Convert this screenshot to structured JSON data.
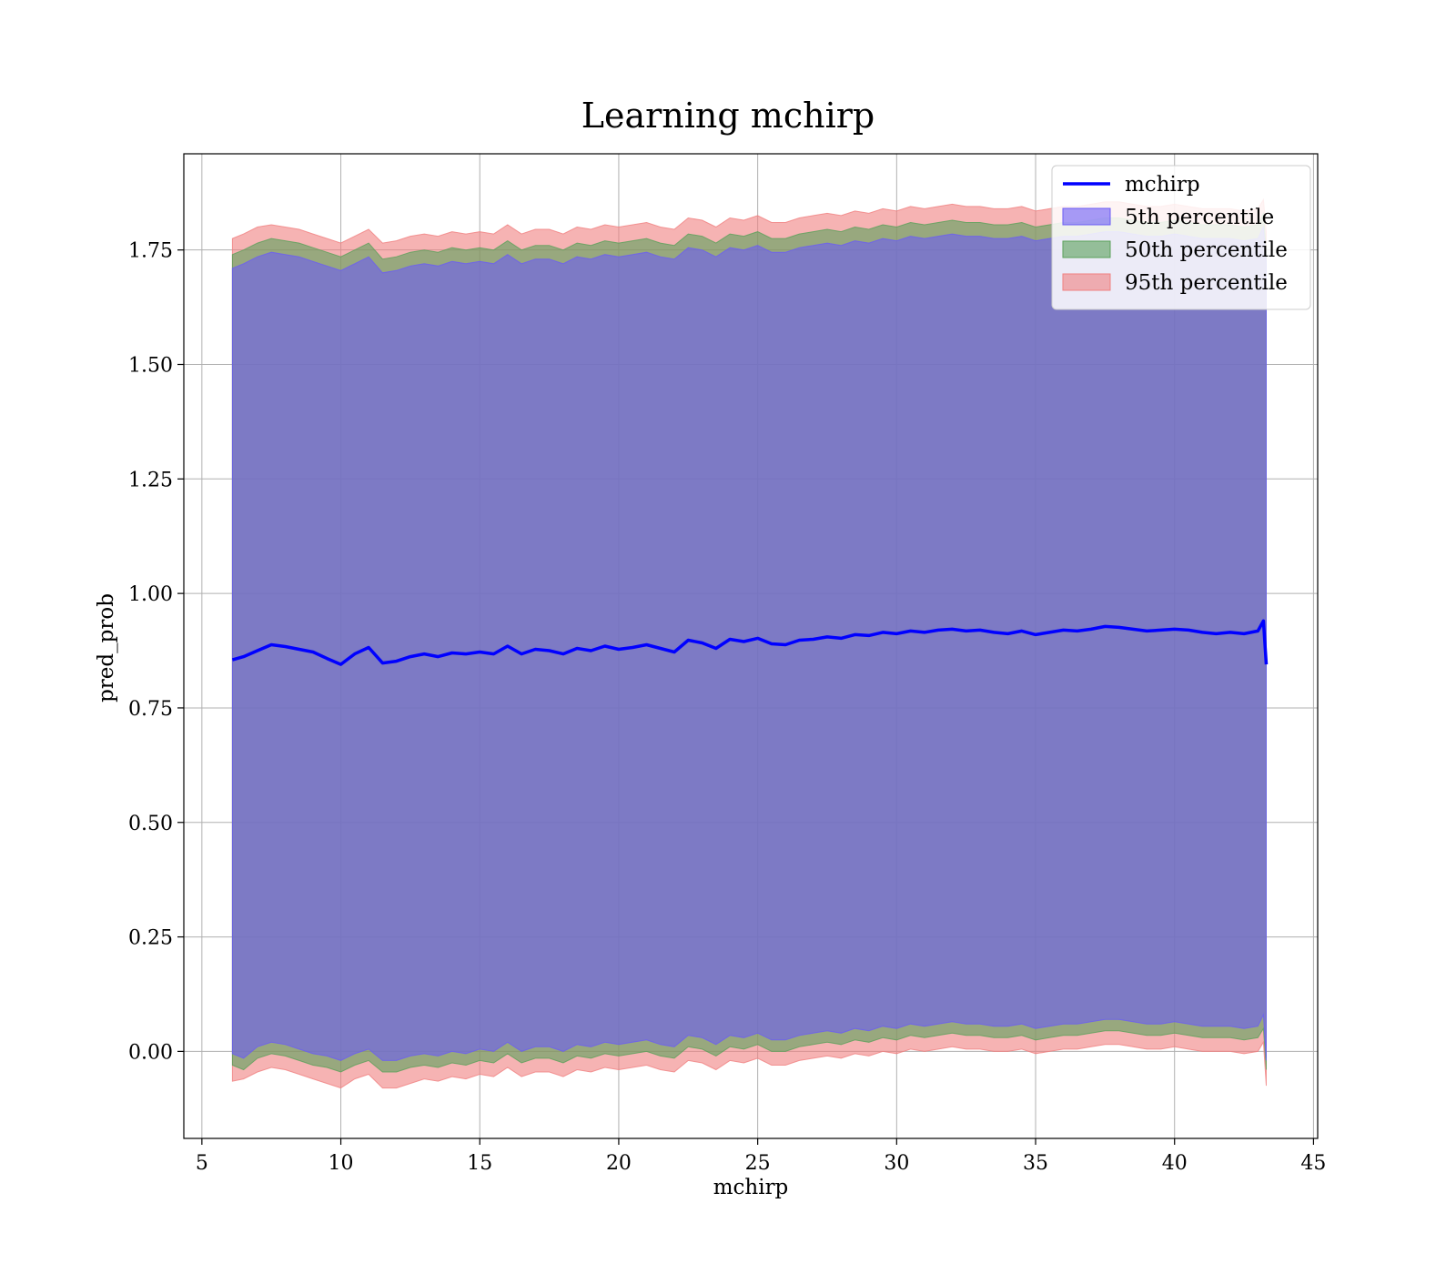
{
  "chart_data": {
    "type": "area",
    "title": "Learning mchirp",
    "xlabel": "mchirp",
    "ylabel": "pred_prob",
    "xlim": [
      4.35,
      45.15
    ],
    "ylim": [
      -0.19,
      1.96
    ],
    "xticks": [
      5,
      10,
      15,
      20,
      25,
      30,
      35,
      40,
      45
    ],
    "xtick_labels": [
      "5",
      "10",
      "15",
      "20",
      "25",
      "30",
      "35",
      "40",
      "45"
    ],
    "yticks": [
      0.0,
      0.25,
      0.5,
      0.75,
      1.0,
      1.25,
      1.5,
      1.75
    ],
    "ytick_labels": [
      "0.00",
      "0.25",
      "0.50",
      "0.75",
      "1.00",
      "1.25",
      "1.50",
      "1.75"
    ],
    "grid": true,
    "legend_position": "top-right",
    "legend": [
      {
        "label": "mchirp",
        "kind": "line",
        "color": "#0000ff"
      },
      {
        "label": "5th percentile",
        "kind": "patch",
        "color": "#6a5cf5"
      },
      {
        "label": "50th percentile",
        "kind": "patch",
        "color": "#5aa05a"
      },
      {
        "label": "95th percentile",
        "kind": "patch",
        "color": "#f08080"
      }
    ],
    "x": [
      6.1,
      6.5,
      7.0,
      7.5,
      8.0,
      8.5,
      9.0,
      9.5,
      10.0,
      10.5,
      11.0,
      11.5,
      12.0,
      12.5,
      13.0,
      13.5,
      14.0,
      14.5,
      15.0,
      15.5,
      16.0,
      16.5,
      17.0,
      17.5,
      18.0,
      18.5,
      19.0,
      19.5,
      20.0,
      20.5,
      21.0,
      21.5,
      22.0,
      22.5,
      23.0,
      23.5,
      24.0,
      24.5,
      25.0,
      25.5,
      26.0,
      26.5,
      27.0,
      27.5,
      28.0,
      28.5,
      29.0,
      29.5,
      30.0,
      30.5,
      31.0,
      31.5,
      32.0,
      32.5,
      33.0,
      33.5,
      34.0,
      34.5,
      35.0,
      35.5,
      36.0,
      36.5,
      37.0,
      37.5,
      38.0,
      38.5,
      39.0,
      39.5,
      40.0,
      40.5,
      41.0,
      41.5,
      42.0,
      42.5,
      43.0,
      43.2,
      43.3
    ],
    "series": [
      {
        "name": "mchirp",
        "type": "line",
        "color": "#0000ff",
        "values": [
          0.855,
          0.862,
          0.875,
          0.888,
          0.884,
          0.878,
          0.872,
          0.858,
          0.845,
          0.868,
          0.882,
          0.848,
          0.852,
          0.862,
          0.868,
          0.862,
          0.87,
          0.868,
          0.872,
          0.868,
          0.885,
          0.868,
          0.878,
          0.875,
          0.868,
          0.88,
          0.875,
          0.885,
          0.878,
          0.882,
          0.888,
          0.88,
          0.872,
          0.898,
          0.892,
          0.88,
          0.9,
          0.895,
          0.902,
          0.89,
          0.888,
          0.898,
          0.9,
          0.905,
          0.902,
          0.91,
          0.908,
          0.915,
          0.912,
          0.918,
          0.915,
          0.92,
          0.922,
          0.918,
          0.92,
          0.915,
          0.912,
          0.918,
          0.91,
          0.915,
          0.92,
          0.918,
          0.922,
          0.928,
          0.926,
          0.922,
          0.918,
          0.92,
          0.922,
          0.92,
          0.915,
          0.912,
          0.915,
          0.912,
          0.918,
          0.94,
          0.845
        ]
      },
      {
        "name": "5th percentile",
        "type": "band",
        "color": "#6a5cf5",
        "lower": [
          -0.005,
          -0.015,
          0.01,
          0.02,
          0.015,
          0.005,
          -0.005,
          -0.01,
          -0.02,
          -0.005,
          0.005,
          -0.02,
          -0.02,
          -0.01,
          -0.005,
          -0.01,
          0.0,
          -0.005,
          0.005,
          0.0,
          0.02,
          0.0,
          0.01,
          0.01,
          0.0,
          0.015,
          0.01,
          0.02,
          0.015,
          0.02,
          0.025,
          0.015,
          0.01,
          0.035,
          0.03,
          0.015,
          0.035,
          0.03,
          0.04,
          0.025,
          0.025,
          0.035,
          0.04,
          0.045,
          0.04,
          0.05,
          0.045,
          0.055,
          0.05,
          0.06,
          0.055,
          0.06,
          0.065,
          0.06,
          0.06,
          0.055,
          0.055,
          0.06,
          0.05,
          0.055,
          0.06,
          0.06,
          0.065,
          0.07,
          0.07,
          0.065,
          0.06,
          0.06,
          0.065,
          0.06,
          0.055,
          0.055,
          0.055,
          0.05,
          0.055,
          0.08,
          -0.02
        ],
        "upper": [
          1.71,
          1.72,
          1.735,
          1.745,
          1.74,
          1.735,
          1.725,
          1.715,
          1.705,
          1.72,
          1.735,
          1.7,
          1.705,
          1.715,
          1.72,
          1.715,
          1.725,
          1.72,
          1.725,
          1.72,
          1.74,
          1.72,
          1.73,
          1.73,
          1.72,
          1.735,
          1.73,
          1.74,
          1.735,
          1.74,
          1.745,
          1.735,
          1.73,
          1.755,
          1.75,
          1.735,
          1.755,
          1.75,
          1.76,
          1.745,
          1.745,
          1.755,
          1.76,
          1.765,
          1.76,
          1.77,
          1.765,
          1.775,
          1.77,
          1.78,
          1.775,
          1.78,
          1.785,
          1.78,
          1.78,
          1.775,
          1.775,
          1.78,
          1.77,
          1.775,
          1.78,
          1.78,
          1.785,
          1.79,
          1.79,
          1.785,
          1.78,
          1.78,
          1.785,
          1.78,
          1.775,
          1.775,
          1.775,
          1.77,
          1.775,
          1.8,
          1.72
        ]
      },
      {
        "name": "50th percentile",
        "type": "band",
        "color": "#5aa05a",
        "lower": [
          -0.03,
          -0.04,
          -0.015,
          -0.005,
          -0.01,
          -0.02,
          -0.03,
          -0.035,
          -0.045,
          -0.03,
          -0.02,
          -0.045,
          -0.045,
          -0.035,
          -0.03,
          -0.035,
          -0.025,
          -0.03,
          -0.02,
          -0.025,
          -0.005,
          -0.025,
          -0.015,
          -0.015,
          -0.025,
          -0.01,
          -0.015,
          -0.005,
          -0.01,
          -0.005,
          0.0,
          -0.01,
          -0.015,
          0.01,
          0.005,
          -0.01,
          0.01,
          0.005,
          0.015,
          0.0,
          0.0,
          0.01,
          0.015,
          0.02,
          0.015,
          0.025,
          0.02,
          0.03,
          0.025,
          0.035,
          0.03,
          0.035,
          0.04,
          0.035,
          0.035,
          0.03,
          0.03,
          0.035,
          0.025,
          0.03,
          0.035,
          0.035,
          0.04,
          0.045,
          0.045,
          0.04,
          0.035,
          0.035,
          0.04,
          0.035,
          0.03,
          0.03,
          0.03,
          0.025,
          0.03,
          0.05,
          -0.04
        ],
        "upper": [
          1.74,
          1.75,
          1.765,
          1.775,
          1.77,
          1.765,
          1.755,
          1.745,
          1.735,
          1.75,
          1.765,
          1.73,
          1.735,
          1.745,
          1.75,
          1.745,
          1.755,
          1.75,
          1.755,
          1.75,
          1.77,
          1.75,
          1.76,
          1.76,
          1.75,
          1.765,
          1.76,
          1.77,
          1.765,
          1.77,
          1.775,
          1.765,
          1.76,
          1.785,
          1.78,
          1.765,
          1.785,
          1.78,
          1.79,
          1.775,
          1.775,
          1.785,
          1.79,
          1.795,
          1.79,
          1.8,
          1.795,
          1.805,
          1.8,
          1.81,
          1.805,
          1.81,
          1.815,
          1.81,
          1.81,
          1.805,
          1.805,
          1.81,
          1.8,
          1.805,
          1.81,
          1.81,
          1.815,
          1.82,
          1.82,
          1.815,
          1.81,
          1.81,
          1.815,
          1.81,
          1.805,
          1.805,
          1.805,
          1.8,
          1.805,
          1.83,
          1.75
        ]
      },
      {
        "name": "95th percentile",
        "type": "band",
        "color": "#f08080",
        "lower": [
          -0.065,
          -0.06,
          -0.045,
          -0.035,
          -0.04,
          -0.05,
          -0.06,
          -0.07,
          -0.08,
          -0.06,
          -0.05,
          -0.08,
          -0.08,
          -0.07,
          -0.06,
          -0.065,
          -0.055,
          -0.06,
          -0.05,
          -0.055,
          -0.035,
          -0.055,
          -0.045,
          -0.045,
          -0.055,
          -0.04,
          -0.045,
          -0.035,
          -0.04,
          -0.035,
          -0.03,
          -0.04,
          -0.045,
          -0.02,
          -0.025,
          -0.04,
          -0.02,
          -0.025,
          -0.015,
          -0.03,
          -0.03,
          -0.02,
          -0.015,
          -0.01,
          -0.015,
          -0.005,
          -0.01,
          0.0,
          -0.005,
          0.005,
          0.0,
          0.005,
          0.01,
          0.005,
          0.005,
          0.0,
          0.0,
          0.005,
          -0.005,
          0.0,
          0.005,
          0.005,
          0.01,
          0.015,
          0.015,
          0.01,
          0.005,
          0.005,
          0.01,
          0.005,
          0.0,
          0.0,
          0.0,
          -0.005,
          0.0,
          0.02,
          -0.075
        ],
        "upper": [
          1.775,
          1.785,
          1.8,
          1.805,
          1.8,
          1.795,
          1.785,
          1.775,
          1.765,
          1.78,
          1.795,
          1.765,
          1.77,
          1.78,
          1.785,
          1.78,
          1.79,
          1.785,
          1.79,
          1.785,
          1.805,
          1.785,
          1.795,
          1.795,
          1.785,
          1.8,
          1.795,
          1.805,
          1.8,
          1.805,
          1.81,
          1.8,
          1.795,
          1.82,
          1.815,
          1.8,
          1.82,
          1.815,
          1.825,
          1.81,
          1.81,
          1.82,
          1.825,
          1.83,
          1.825,
          1.835,
          1.83,
          1.84,
          1.835,
          1.845,
          1.84,
          1.845,
          1.85,
          1.845,
          1.845,
          1.84,
          1.84,
          1.845,
          1.835,
          1.84,
          1.845,
          1.845,
          1.85,
          1.855,
          1.855,
          1.85,
          1.845,
          1.845,
          1.85,
          1.845,
          1.84,
          1.84,
          1.84,
          1.835,
          1.84,
          1.86,
          1.79
        ]
      }
    ]
  }
}
